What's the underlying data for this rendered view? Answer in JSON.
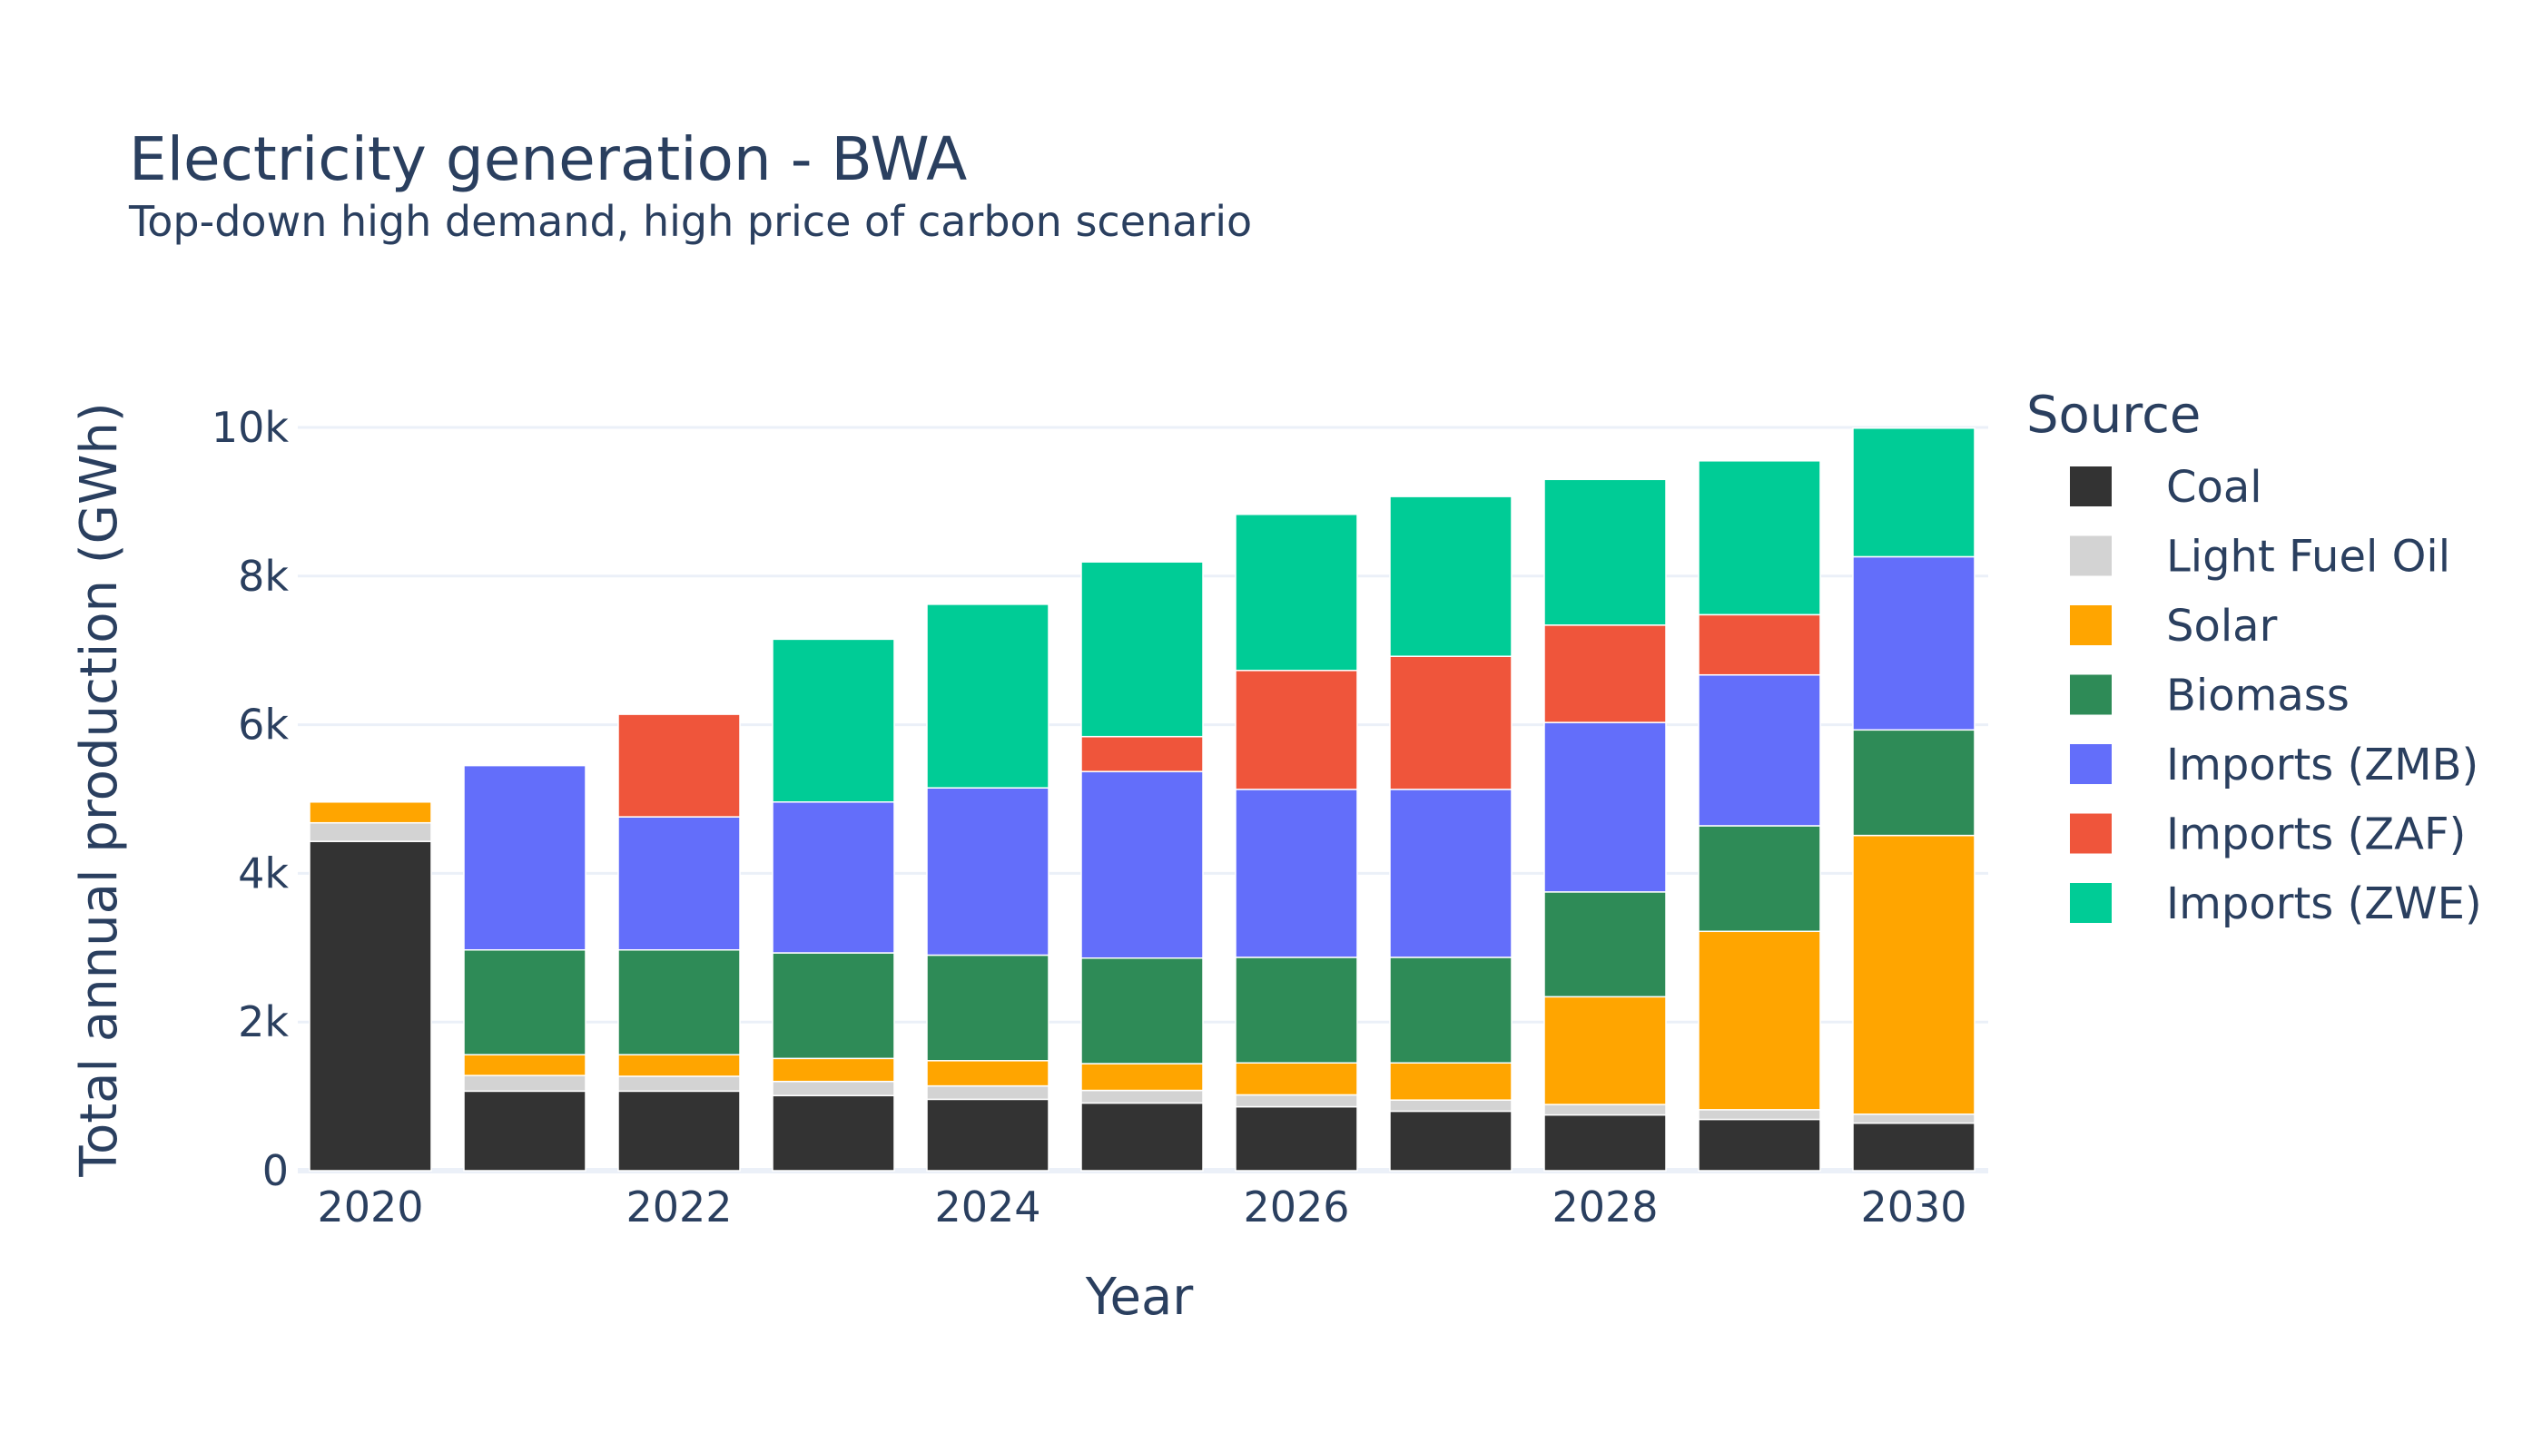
{
  "chart_data": {
    "type": "bar",
    "stacked": true,
    "title": "Electricity generation - BWA",
    "subtitle": "Top-down high demand, high price of carbon scenario",
    "xlabel": "Year",
    "ylabel": "Total annual production (GWh)",
    "x": [
      2020,
      2021,
      2022,
      2023,
      2024,
      2025,
      2026,
      2027,
      2028,
      2029,
      2030
    ],
    "x_tick_labels": [
      "2020",
      "2022",
      "2024",
      "2026",
      "2028",
      "2030"
    ],
    "x_tick_values": [
      2020,
      2022,
      2024,
      2026,
      2028,
      2030
    ],
    "ylim": [
      0,
      10500
    ],
    "y_tick_values": [
      0,
      2000,
      4000,
      6000,
      8000,
      10000
    ],
    "y_tick_labels": [
      "0",
      "2k",
      "4k",
      "6k",
      "8k",
      "10k"
    ],
    "grid": true,
    "legend_title": "Source",
    "legend_placement": "right",
    "series": [
      {
        "name": "Coal",
        "color": "#333333",
        "values": [
          4430,
          1070,
          1070,
          1010,
          960,
          910,
          860,
          800,
          750,
          690,
          640
        ]
      },
      {
        "name": "Light Fuel Oil",
        "color": "#d3d3d3",
        "values": [
          250,
          210,
          200,
          190,
          180,
          170,
          160,
          150,
          140,
          130,
          120
        ]
      },
      {
        "name": "Solar",
        "color": "#ffa500",
        "values": [
          280,
          280,
          290,
          310,
          340,
          360,
          430,
          500,
          1450,
          2400,
          3750
        ]
      },
      {
        "name": "Biomass",
        "color": "#2e8b57",
        "values": [
          0,
          1410,
          1410,
          1420,
          1420,
          1420,
          1420,
          1420,
          1410,
          1420,
          1420
        ]
      },
      {
        "name": "Imports (ZMB)",
        "color": "#636efa",
        "values": [
          0,
          2480,
          1790,
          2030,
          2250,
          2510,
          2260,
          2260,
          2280,
          2030,
          2330
        ]
      },
      {
        "name": "Imports (ZAF)",
        "color": "#ef553b",
        "values": [
          0,
          0,
          1380,
          0,
          0,
          470,
          1600,
          1790,
          1310,
          810,
          0
        ]
      },
      {
        "name": "Imports (ZWE)",
        "color": "#00cc96",
        "values": [
          0,
          0,
          0,
          2190,
          2470,
          2350,
          2100,
          2150,
          1960,
          2070,
          1730
        ]
      }
    ]
  }
}
